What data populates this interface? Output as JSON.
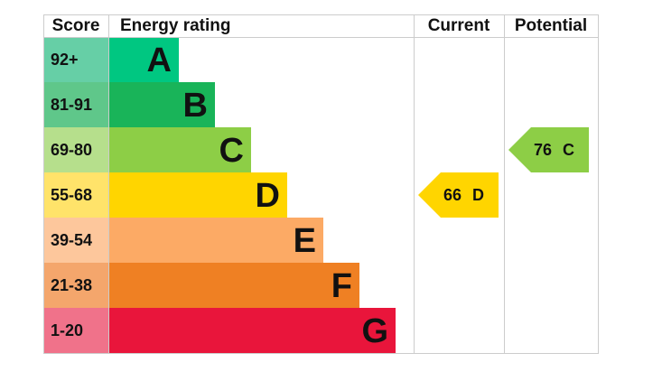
{
  "headers": {
    "score": "Score",
    "rating": "Energy rating",
    "current": "Current",
    "potential": "Potential"
  },
  "bands": [
    {
      "score": "92+",
      "letter": "A",
      "color": "#00c781",
      "light": "#66cfa6"
    },
    {
      "score": "81-91",
      "letter": "B",
      "color": "#19b459",
      "light": "#5fc78a"
    },
    {
      "score": "69-80",
      "letter": "C",
      "color": "#8dce46",
      "light": "#b6df8c"
    },
    {
      "score": "55-68",
      "letter": "D",
      "color": "#ffd500",
      "light": "#ffe36a"
    },
    {
      "score": "39-54",
      "letter": "E",
      "color": "#fcaa65",
      "light": "#fdc79c"
    },
    {
      "score": "21-38",
      "letter": "F",
      "color": "#ef8023",
      "light": "#f4a66c"
    },
    {
      "score": "1-20",
      "letter": "G",
      "color": "#e9153b",
      "light": "#f0728a"
    }
  ],
  "current": {
    "value": 66,
    "letter": "D"
  },
  "potential": {
    "value": 76,
    "letter": "C"
  }
}
